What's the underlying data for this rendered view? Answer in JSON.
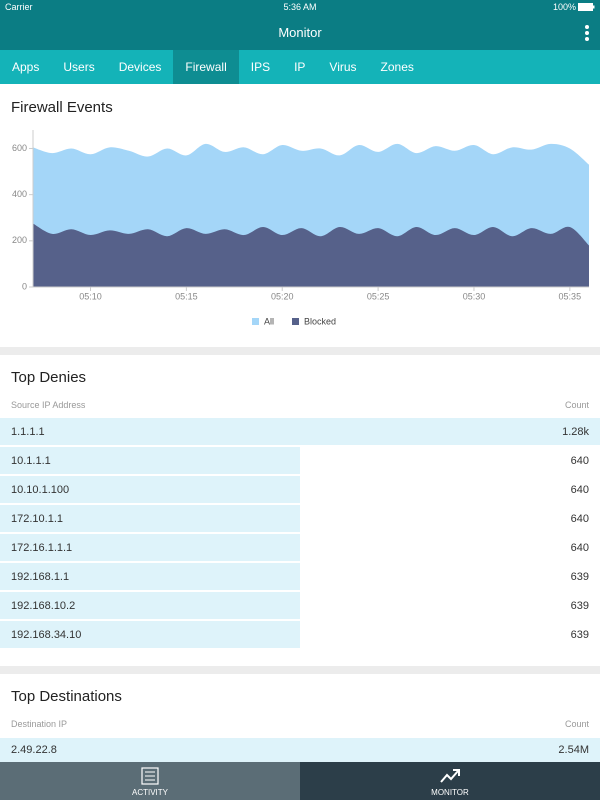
{
  "status_bar": {
    "carrier": "Carrier",
    "time": "5:36 AM",
    "battery": "100%"
  },
  "header": {
    "title": "Monitor"
  },
  "tabs": {
    "items": [
      "Apps",
      "Users",
      "Devices",
      "Firewall",
      "IPS",
      "IP",
      "Virus",
      "Zones"
    ],
    "active": 3
  },
  "chart_data": {
    "type": "area",
    "title": "Firewall Events",
    "x": [
      "05:07",
      "05:08",
      "05:09",
      "05:10",
      "05:11",
      "05:12",
      "05:13",
      "05:14",
      "05:15",
      "05:16",
      "05:17",
      "05:18",
      "05:19",
      "05:20",
      "05:21",
      "05:22",
      "05:23",
      "05:24",
      "05:25",
      "05:26",
      "05:27",
      "05:28",
      "05:29",
      "05:30",
      "05:31",
      "05:32",
      "05:33",
      "05:34",
      "05:35",
      "05:36"
    ],
    "series": [
      {
        "name": "All",
        "color": "#a4d6f8",
        "values": [
          605,
          580,
          600,
          575,
          605,
          590,
          565,
          600,
          570,
          620,
          585,
          605,
          575,
          615,
          590,
          600,
          570,
          615,
          585,
          620,
          580,
          610,
          590,
          615,
          575,
          605,
          595,
          620,
          600,
          530
        ]
      },
      {
        "name": "Blocked",
        "color": "#56618a",
        "values": [
          275,
          230,
          250,
          225,
          245,
          230,
          250,
          220,
          255,
          230,
          250,
          225,
          260,
          225,
          255,
          220,
          260,
          230,
          255,
          220,
          260,
          225,
          255,
          225,
          260,
          220,
          255,
          230,
          260,
          180
        ]
      }
    ],
    "xlim": [
      "05:07",
      "05:36"
    ],
    "xticks": [
      "05:10",
      "05:15",
      "05:20",
      "05:25",
      "05:30",
      "05:35"
    ],
    "ylim": [
      0,
      680
    ],
    "yticks": [
      0,
      200,
      400,
      600
    ],
    "legend": "bottom"
  },
  "top_denies": {
    "title": "Top Denies",
    "columns": [
      "Source IP Address",
      "Count"
    ],
    "rows": [
      {
        "ip": "1.1.1.1",
        "count": {
          "value": 1280,
          "label": "1.28k"
        }
      },
      {
        "ip": "10.1.1.1",
        "count": 640
      },
      {
        "ip": "10.10.1.100",
        "count": 640
      },
      {
        "ip": "172.10.1.1",
        "count": 640
      },
      {
        "ip": "172.16.1.1.1",
        "count": 640
      },
      {
        "ip": "192.168.1.1",
        "count": 639
      },
      {
        "ip": "192.168.10.2",
        "count": 639
      },
      {
        "ip": "192.168.34.10",
        "count": 639
      }
    ]
  },
  "top_destinations": {
    "title": "Top Destinations",
    "columns": [
      "Destination IP",
      "Count"
    ],
    "rows": [
      {
        "ip": "2.49.22.8",
        "count": {
          "value": 2540000,
          "label": "2.54M"
        }
      }
    ]
  },
  "bottom_nav": {
    "items": [
      "ACTIVITY",
      "MONITOR"
    ],
    "active": 1
  }
}
